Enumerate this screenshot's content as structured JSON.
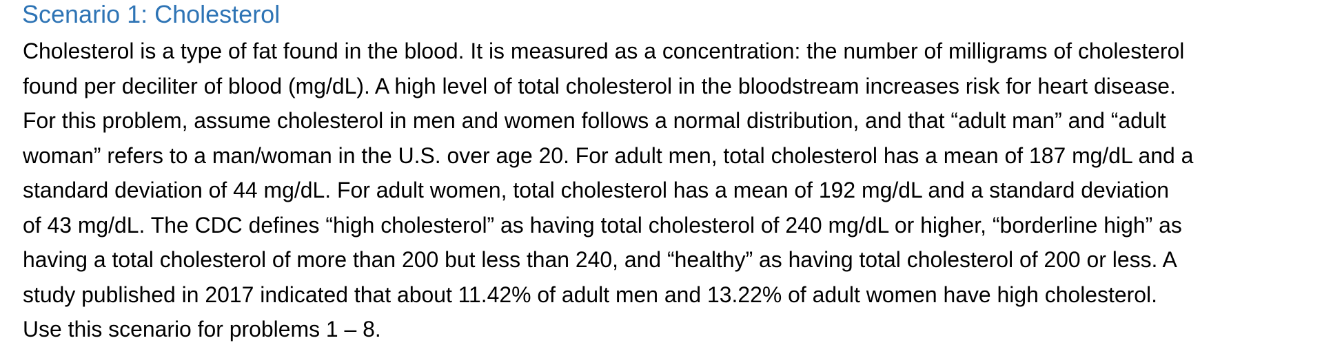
{
  "heading": "Scenario 1: Cholesterol",
  "paragraph": {
    "lines": [
      "Cholesterol is a type of fat found in the blood. It is measured as a concentration: the number of milligrams of cholesterol",
      "found per deciliter of blood (mg/dL). A high level of total cholesterol in the bloodstream increases risk for heart disease.",
      "For this problem, assume cholesterol in men and women follows a normal distribution, and that “adult man” and “adult",
      "woman” refers to a man/woman in the U.S. over age 20. For adult men, total cholesterol has a mean of 187 mg/dL and a",
      "standard deviation of 44 mg/dL. For adult women, total cholesterol has a mean of 192 mg/dL and a standard deviation",
      "of 43 mg/dL. The CDC defines “high cholesterol” as having total cholesterol of 240 mg/dL or higher, “borderline high” as",
      "having a total cholesterol of more than 200 but less than 240, and “healthy” as having total cholesterol of 200 or less. A",
      "study published in 2017 indicated that about 11.42% of adult men and 13.22% of adult women have high cholesterol.",
      "Use this scenario for problems 1 – 8."
    ]
  }
}
